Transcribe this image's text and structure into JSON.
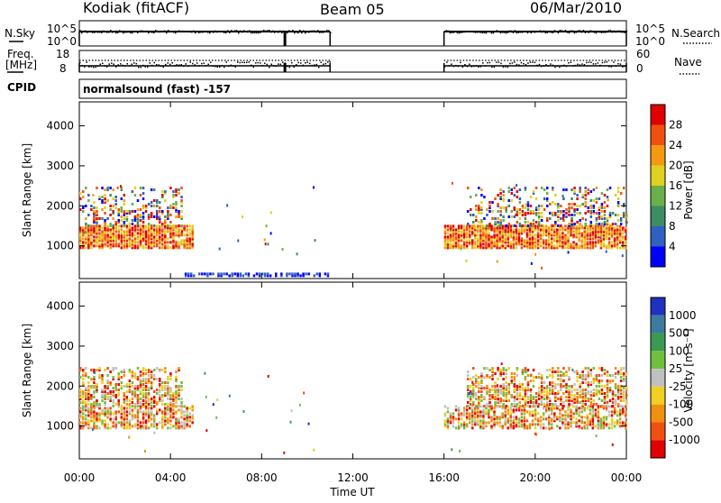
{
  "header": {
    "station": "Kodiak (fitACF)",
    "beam": "Beam 05",
    "date": "06/Mar/2010"
  },
  "status": {
    "nsky_label": "N.Sky",
    "nsky_ticks": [
      "10^5",
      "10^0"
    ],
    "nsearch_label": "N.Search",
    "nsearch_ticks": [
      "10^5",
      "10^0"
    ],
    "freq_label": [
      "Freq.",
      "[MHz]"
    ],
    "freq_ticks": [
      "18",
      "8"
    ],
    "nave_label": "Nave",
    "nave_ticks": [
      "60",
      "0"
    ],
    "cpid_label": "CPID",
    "cpid_text": "normalsound (fast) -157",
    "data_intervals_hours": [
      [
        0,
        11
      ],
      [
        16,
        24
      ]
    ]
  },
  "chart_data": [
    {
      "type": "heatmap",
      "name": "power",
      "xlabel": "",
      "ylabel": "Slant Range [km]",
      "xlim": [
        0,
        24
      ],
      "ylim": [
        180,
        4600
      ],
      "yticks": [
        1000,
        2000,
        3000,
        4000
      ],
      "colorbar": {
        "label": "Power [dB]",
        "ticks": [
          "4",
          "8",
          "12",
          "16",
          "20",
          "24",
          "28"
        ],
        "colors": [
          "#0000ff",
          "#3060c0",
          "#3c8c64",
          "#6ab04a",
          "#e0d020",
          "#f59a10",
          "#f05010",
          "#e00000"
        ]
      },
      "scatter_bands": [
        {
          "range_km": [
            950,
            1500
          ],
          "hours": [
            [
              0,
              5
            ],
            [
              16,
              24
            ]
          ],
          "level": "high"
        },
        {
          "range_km": [
            1500,
            2450
          ],
          "hours": [
            [
              0,
              4.5
            ],
            [
              17,
              24
            ]
          ],
          "level": "medium"
        },
        {
          "range_km": [
            250,
            300
          ],
          "hours": [
            [
              4.5,
              11
            ]
          ],
          "level": "low"
        }
      ]
    },
    {
      "type": "heatmap",
      "name": "velocity",
      "xlabel": "Time UT",
      "ylabel": "Slant Range [km]",
      "xlim": [
        0,
        24
      ],
      "ylim": [
        180,
        4600
      ],
      "xticks": [
        "00:00",
        "04:00",
        "08:00",
        "12:00",
        "16:00",
        "20:00",
        "00:00"
      ],
      "yticks": [
        1000,
        2000,
        3000,
        4000
      ],
      "colorbar": {
        "label": "Velocity [m s⁻¹]",
        "ticks": [
          "1000",
          "500",
          "100",
          "25",
          "-25",
          "-100",
          "-500",
          "-1000"
        ],
        "colors": [
          "#2030c0",
          "#3c7aa0",
          "#3c9a50",
          "#70c040",
          "#c0c0c0",
          "#f0d020",
          "#f09010",
          "#f05010",
          "#e00000"
        ]
      },
      "scatter_bands": [
        {
          "range_km": [
            950,
            1500
          ],
          "hours": [
            [
              0,
              5
            ],
            [
              16,
              24
            ]
          ],
          "level": "mixed"
        },
        {
          "range_km": [
            1500,
            2450
          ],
          "hours": [
            [
              0,
              4.5
            ],
            [
              17,
              24
            ]
          ],
          "level": "mixed"
        }
      ]
    }
  ]
}
